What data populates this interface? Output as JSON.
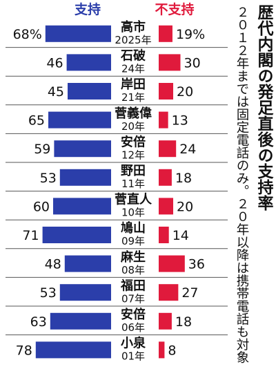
{
  "title": "歴代内閣の発足直後の支持率",
  "note": "２０１２年までは固定電話のみ。２０年以降は携帯電話も対象",
  "colors": {
    "support": "#2b3eaa",
    "nonsupport": "#e01a3c",
    "separator": "#555555"
  },
  "chart_data": {
    "type": "bar",
    "title": "歴代内閣の発足直後の支持率",
    "series": [
      {
        "name": "支持",
        "values": [
          68,
          46,
          45,
          65,
          59,
          53,
          60,
          71,
          48,
          53,
          63,
          78
        ]
      },
      {
        "name": "不支持",
        "values": [
          19,
          30,
          20,
          13,
          24,
          18,
          20,
          14,
          36,
          27,
          18,
          8
        ]
      }
    ],
    "categories": [
      "高市",
      "石破",
      "岸田",
      "菅義偉",
      "安倍",
      "野田",
      "菅直人",
      "鳩山",
      "麻生",
      "福田",
      "安倍",
      "小泉"
    ],
    "years": [
      "2025年",
      "24年",
      "21年",
      "20年",
      "12年",
      "11年",
      "10年",
      "09年",
      "08年",
      "07年",
      "06年",
      "01年"
    ],
    "value_labels_support": [
      "68%",
      "46",
      "45",
      "65",
      "59",
      "53",
      "60",
      "71",
      "48",
      "53",
      "63",
      "78"
    ],
    "value_labels_nonsupport": [
      "19%",
      "30",
      "20",
      "13",
      "24",
      "18",
      "20",
      "14",
      "36",
      "27",
      "18",
      "8"
    ],
    "legend": [
      "支持",
      "不支持"
    ],
    "legend_position": "top",
    "grid": false
  }
}
